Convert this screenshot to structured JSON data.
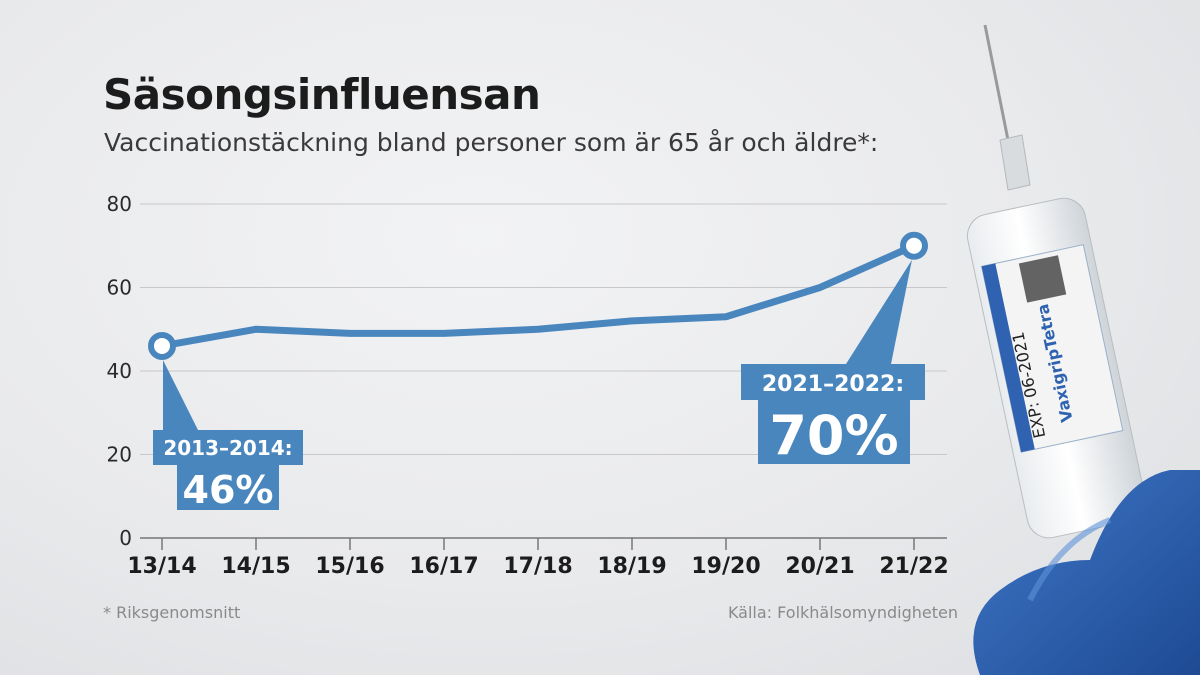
{
  "header": {
    "title": "Säsongsinfluensan",
    "subtitle": "Vaccinationstäckning bland personer som är 65 år och äldre*:"
  },
  "footer": {
    "footnote": "* Riksgenomsnitt",
    "source": "Källa: Folkhälsomyndigheten"
  },
  "colors": {
    "accent": "#4a86be",
    "grid": "#c8c8c8",
    "text": "#1c1c1c"
  },
  "syringe_label": {
    "brand": "VaxigripTetra",
    "exp": "EXP: 06-2021"
  },
  "chart_data": {
    "type": "line",
    "categories": [
      "13/14",
      "14/15",
      "15/16",
      "16/17",
      "17/18",
      "18/19",
      "19/20",
      "20/21",
      "21/22"
    ],
    "series": [
      {
        "values": [
          46,
          50,
          49,
          49,
          50,
          52,
          53,
          60,
          70
        ]
      }
    ],
    "ylim": [
      0,
      80
    ],
    "yticks": [
      0,
      20,
      40,
      60,
      80
    ],
    "grid": true,
    "legend": "none",
    "annotations": [
      {
        "index": 0,
        "period": "2013–2014:",
        "value": "46%"
      },
      {
        "index": 8,
        "period": "2021–2022:",
        "value": "70%"
      }
    ]
  }
}
